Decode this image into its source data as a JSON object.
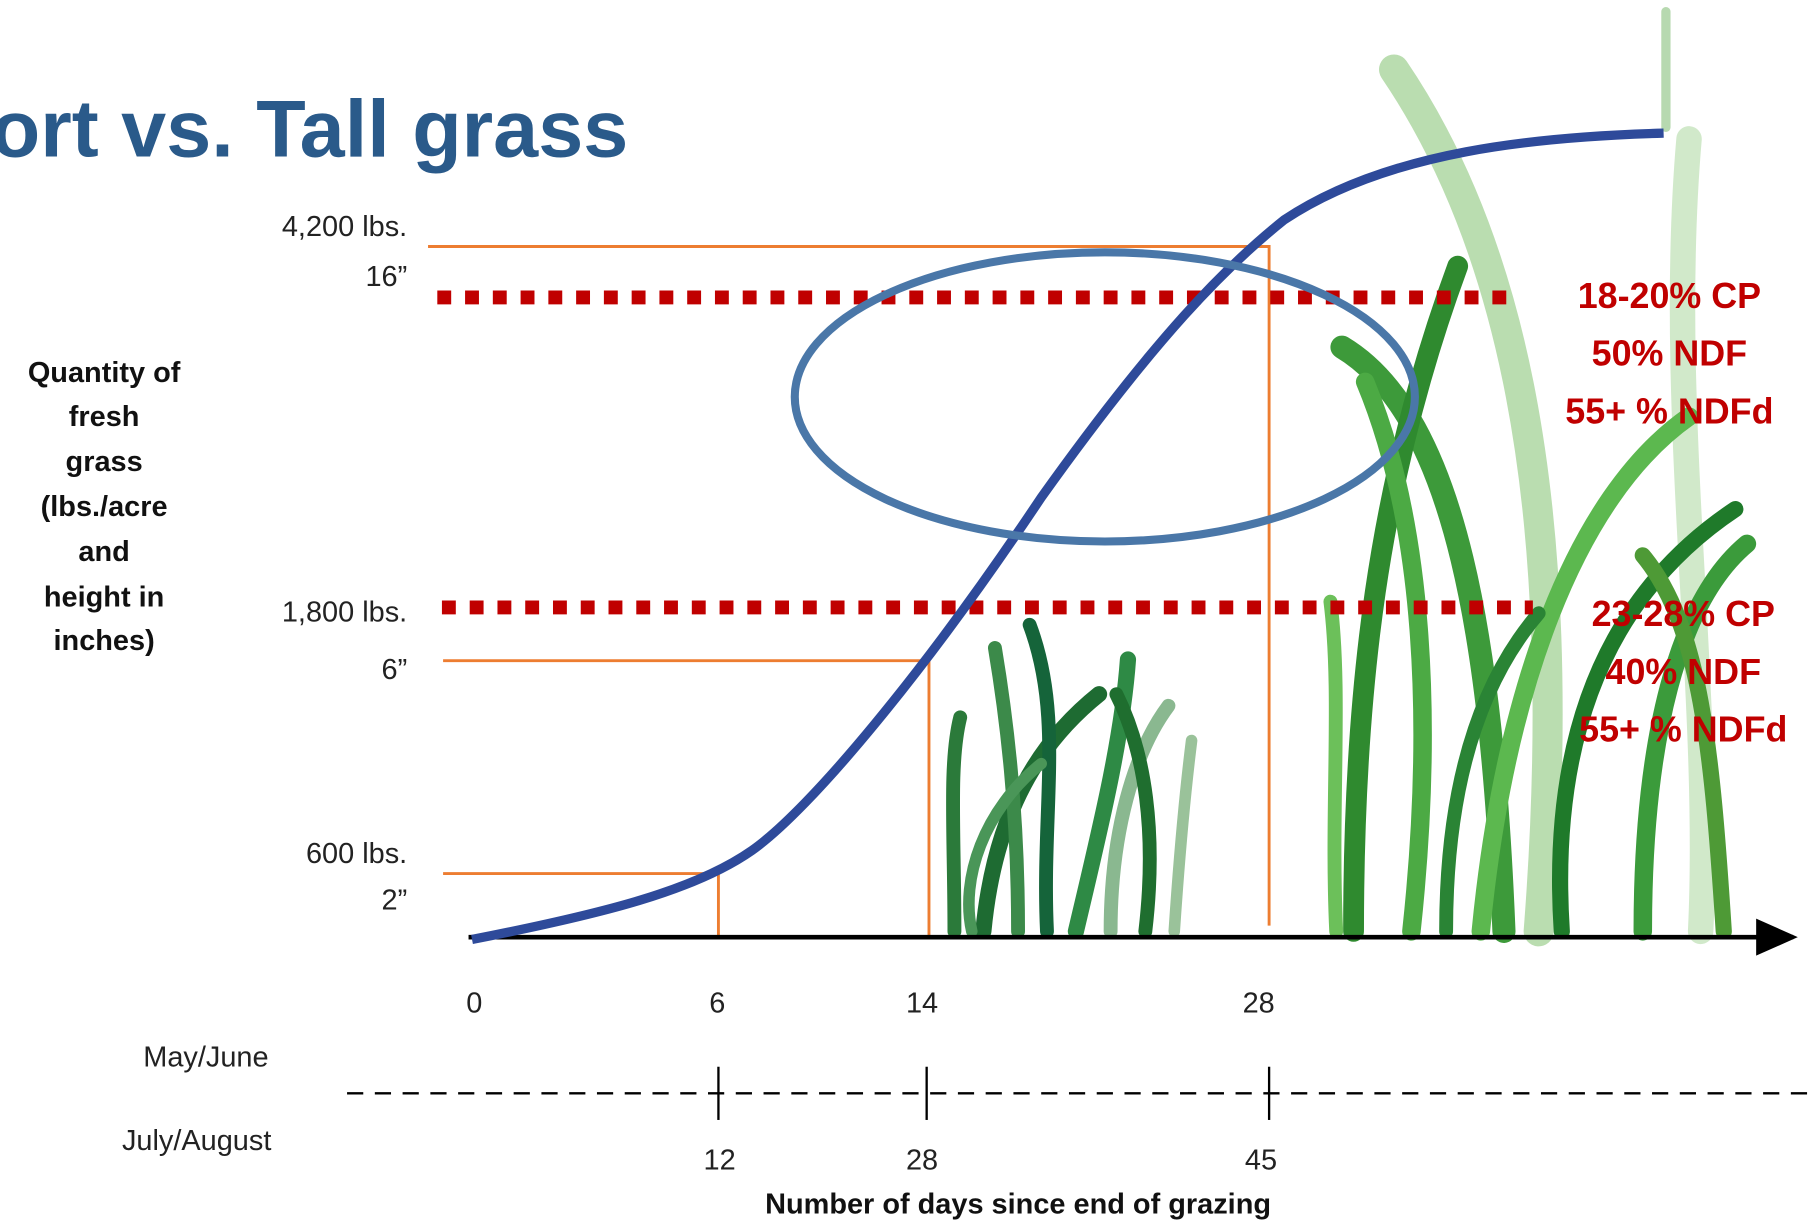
{
  "title": "ort vs. Tall grass",
  "y_axis_label": [
    "Quantity of",
    "fresh",
    "grass",
    "(lbs./acre",
    "and",
    "height in",
    "inches)"
  ],
  "levels": [
    {
      "weight": "4,200 lbs.",
      "height": "16”"
    },
    {
      "weight": "1,800 lbs.",
      "height": "6”"
    },
    {
      "weight": "600 lbs.",
      "height": "2”"
    }
  ],
  "x_ticks_may_june": [
    "0",
    "6",
    "14",
    "28"
  ],
  "season_labels": [
    "May/June",
    "July/August"
  ],
  "x_ticks_july_august": [
    "12",
    "28",
    "45"
  ],
  "x_axis_label": "Number of days since end of grazing",
  "quality_notes": [
    [
      "18-20% CP",
      "50% NDF",
      "55+ % NDFd"
    ],
    [
      "23-28% CP",
      "40% NDF",
      "55+ % NDFd"
    ]
  ]
}
